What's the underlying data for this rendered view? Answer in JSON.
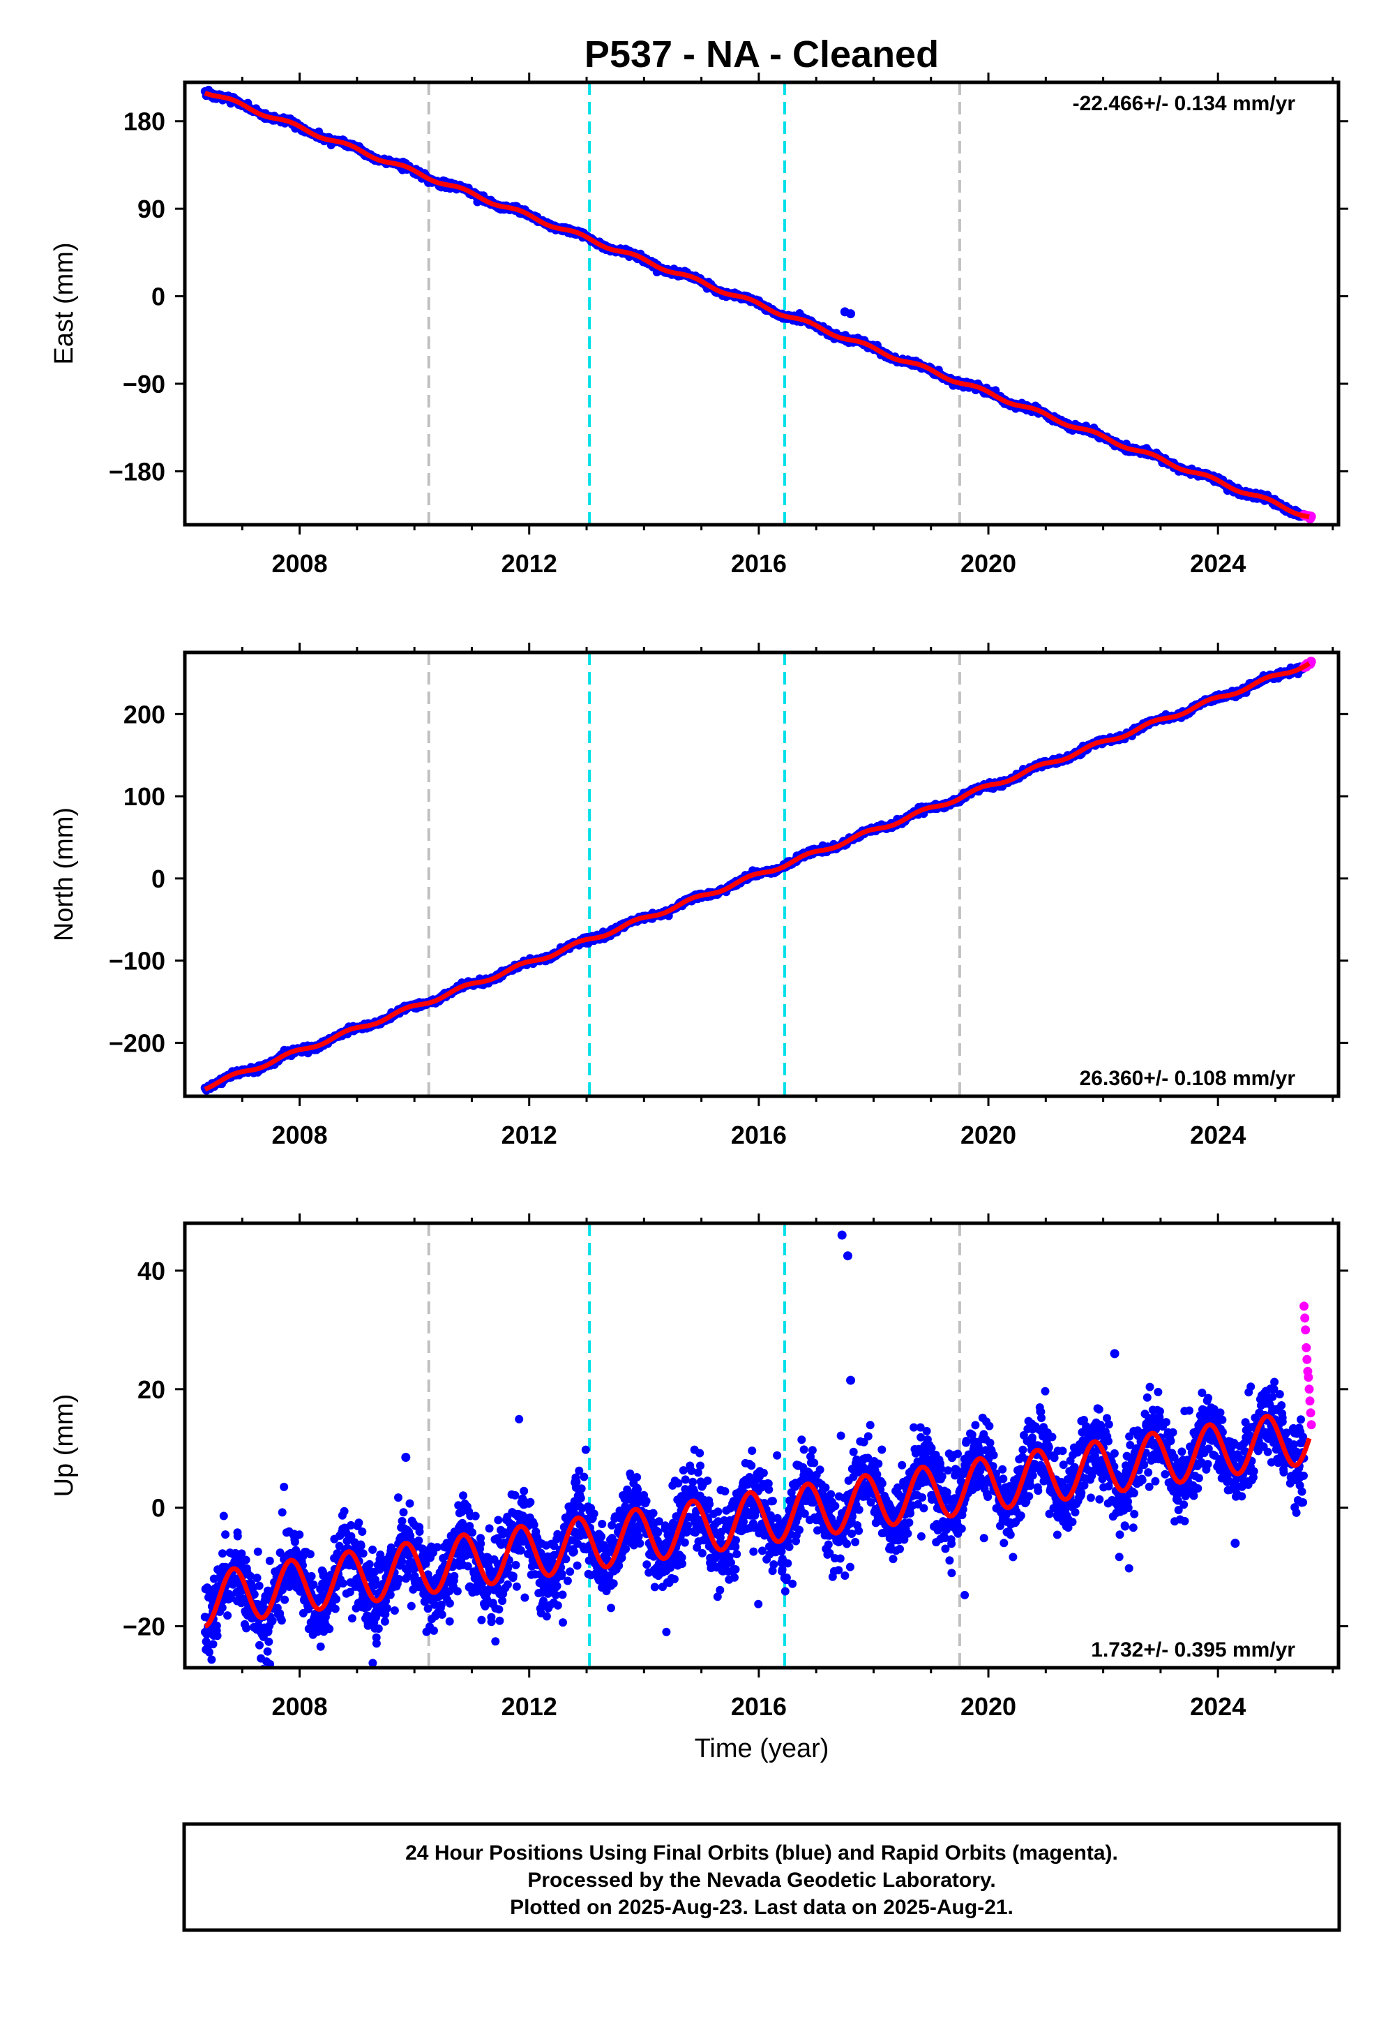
{
  "title": "P537  - NA - Cleaned",
  "colors": {
    "final": "#0000ff",
    "rapid": "#ff00ff",
    "model": "#ff0000",
    "event_gray": "#c0c0c0",
    "event_cyan": "#00e0e8",
    "axis": "#000000"
  },
  "chart_data": [
    {
      "type": "scatter",
      "component": "east",
      "ylabel": "East (mm)",
      "xlim": [
        2006.0,
        2026.1
      ],
      "ylim": [
        -235,
        220
      ],
      "xticks": [
        2008,
        2012,
        2016,
        2020,
        2024
      ],
      "yticks": [
        180,
        90,
        0,
        -90,
        -180
      ],
      "ytick_labels": [
        "180",
        "90",
        "0",
        "−90",
        "−180"
      ],
      "rate_text": "-22.466+/- 0.134 mm/yr",
      "rate_position": "top-right",
      "trend": {
        "t0": 2006.35,
        "t1": 2025.6,
        "y0": 211,
        "y1": -227
      },
      "seasonal_amp": 2.0,
      "scatter_sd": 1.6,
      "final_range": [
        2006.35,
        2025.5
      ],
      "rapid_range": [
        2025.5,
        2025.64
      ],
      "outliers": [
        {
          "x": 2017.5,
          "y": -16
        },
        {
          "x": 2017.6,
          "y": -18
        }
      ]
    },
    {
      "type": "scatter",
      "component": "north",
      "ylabel": "North (mm)",
      "xlim": [
        2006.0,
        2026.1
      ],
      "ylim": [
        -265,
        275
      ],
      "xticks": [
        2008,
        2012,
        2016,
        2020,
        2024
      ],
      "yticks": [
        200,
        100,
        0,
        -100,
        -200
      ],
      "ytick_labels": [
        "200",
        "100",
        "0",
        "−100",
        "−200"
      ],
      "rate_text": "26.360+/- 0.108 mm/yr",
      "rate_position": "bottom-right",
      "trend": {
        "t0": 2006.35,
        "t1": 2025.6,
        "y0": -254,
        "y1": 262
      },
      "seasonal_amp": 2.5,
      "scatter_sd": 1.8,
      "final_range": [
        2006.35,
        2025.5
      ],
      "rapid_range": [
        2025.5,
        2025.64
      ],
      "outliers": []
    },
    {
      "type": "scatter",
      "component": "up",
      "ylabel": "Up (mm)",
      "xlabel": "Time (year)",
      "xlim": [
        2006.0,
        2026.1
      ],
      "ylim": [
        -27,
        48
      ],
      "xticks": [
        2008,
        2012,
        2016,
        2020,
        2024
      ],
      "yticks": [
        40,
        20,
        0,
        -20
      ],
      "ytick_labels": [
        "40",
        "20",
        "0",
        "−20"
      ],
      "rate_text": "1.732+/- 0.395 mm/yr",
      "rate_position": "bottom-right",
      "trend": {
        "t0": 2006.35,
        "t1": 2025.6,
        "y0": -15.5,
        "y1": 12.0
      },
      "seasonal_amp": 4.5,
      "scatter_sd": 3.3,
      "final_range": [
        2006.35,
        2025.5
      ],
      "rapid_range": [
        2025.5,
        2025.64
      ],
      "outliers": [
        {
          "x": 2017.45,
          "y": 46
        },
        {
          "x": 2017.55,
          "y": 42.5
        },
        {
          "x": 2017.6,
          "y": 21.5
        },
        {
          "x": 2009.85,
          "y": 8.5
        },
        {
          "x": 2022.2,
          "y": 26
        },
        {
          "x": 2024.3,
          "y": -6
        }
      ],
      "rapid_points": [
        34,
        32,
        30,
        27,
        25,
        23,
        22,
        20,
        18,
        16,
        14
      ]
    }
  ],
  "event_lines": [
    {
      "x": 2010.25,
      "color": "gray"
    },
    {
      "x": 2013.05,
      "color": "cyan"
    },
    {
      "x": 2016.45,
      "color": "cyan"
    },
    {
      "x": 2019.5,
      "color": "gray"
    }
  ],
  "footer": {
    "line1": "24 Hour Positions Using Final Orbits (blue) and Rapid Orbits (magenta).",
    "line2": "Processed by the Nevada Geodetic Laboratory.",
    "line3": "Plotted on 2025-Aug-23. Last data on 2025-Aug-21."
  }
}
